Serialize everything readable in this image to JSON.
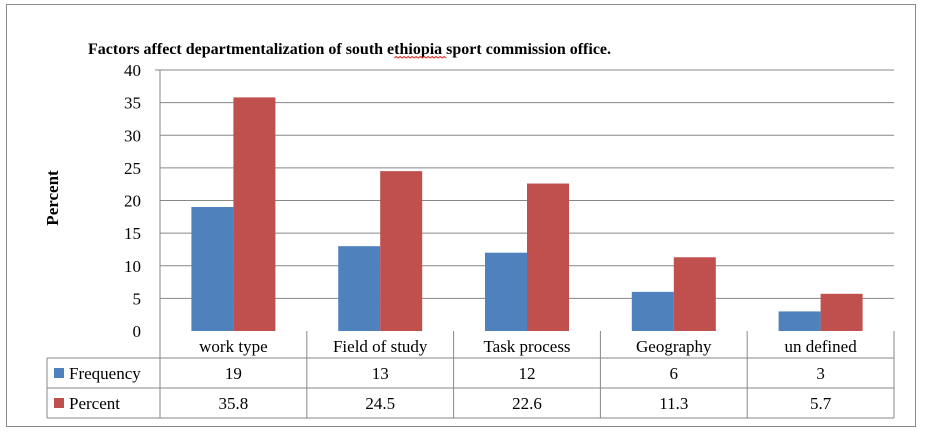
{
  "chart_data": {
    "type": "bar",
    "title": "Factors affect  departmentalization of south ethiopia sport commission office.",
    "title_underlined_word": "ethiopia",
    "xlabel": "",
    "ylabel": "Percent",
    "ylim": [
      0,
      40
    ],
    "yticks": [
      "0",
      "5",
      "10",
      "15",
      "20",
      "25",
      "30",
      "35",
      "40"
    ],
    "grid": true,
    "legend": "data-table-left",
    "categories": [
      "work type",
      "Field of study",
      "Task process",
      "Geography",
      "un defined"
    ],
    "series": [
      {
        "name": "Frequency",
        "values": [
          19,
          13,
          12,
          6,
          3
        ],
        "labels": [
          "19",
          "13",
          "12",
          "6",
          "3"
        ],
        "color": "#4f81bd"
      },
      {
        "name": "Percent",
        "values": [
          35.8,
          24.5,
          22.6,
          11.3,
          5.7
        ],
        "labels": [
          "35.8",
          "24.5",
          "22.6",
          "11.3",
          "5.7"
        ],
        "color": "#c0504d"
      }
    ]
  }
}
